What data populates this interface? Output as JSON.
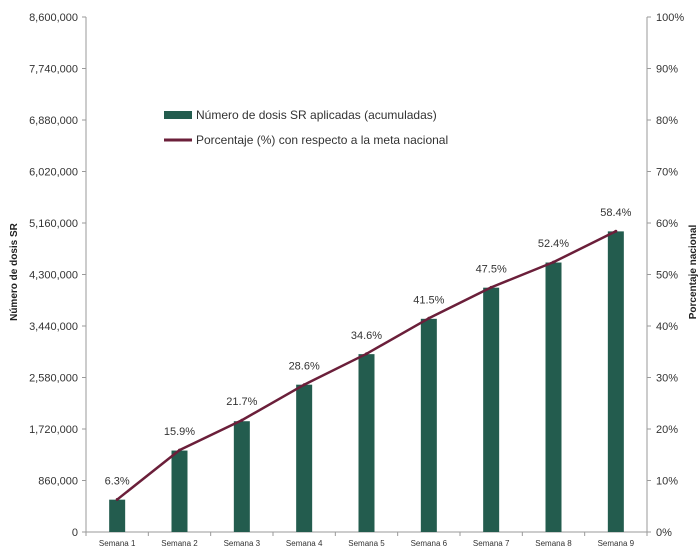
{
  "chart_data": {
    "type": "bar",
    "categories": [
      "Semana 1",
      "Semana 2",
      "Semana 3",
      "Semana 4",
      "Semana 5",
      "Semana 6",
      "Semana 7",
      "Semana 8",
      "Semana 9"
    ],
    "series": [
      {
        "name": "Número de dosis SR aplicadas (acumuladas)",
        "type": "bar",
        "axis": "left",
        "color": "#235c4e",
        "values": [
          540000,
          1360000,
          1850000,
          2460000,
          2970000,
          3560000,
          4080000,
          4500000,
          5020000
        ]
      },
      {
        "name": "Porcentaje (%) con respecto a la meta nacional",
        "type": "line",
        "axis": "right",
        "color": "#6b1f3a",
        "values": [
          6.3,
          15.9,
          21.7,
          28.6,
          34.6,
          41.5,
          47.5,
          52.4,
          58.4
        ],
        "data_labels": [
          "6.3%",
          "15.9%",
          "21.7%",
          "28.6%",
          "34.6%",
          "41.5%",
          "47.5%",
          "52.4%",
          "58.4%"
        ]
      }
    ],
    "ylabel": "Número de dosis SR",
    "y2label": "Porcentaje nacional",
    "ylim": [
      0,
      8600000
    ],
    "y2lim": [
      0,
      100
    ],
    "yticks": [
      "0",
      "860,000",
      "1,720,000",
      "2,580,000",
      "3,440,000",
      "4,300,000",
      "5,160,000",
      "6,020,000",
      "6,880,000",
      "7,740,000",
      "8,600,000"
    ],
    "y2ticks": [
      "0%",
      "10%",
      "20%",
      "30%",
      "40%",
      "50%",
      "60%",
      "70%",
      "80%",
      "90%",
      "100%"
    ],
    "grid": false,
    "legend_position": "top-left"
  }
}
